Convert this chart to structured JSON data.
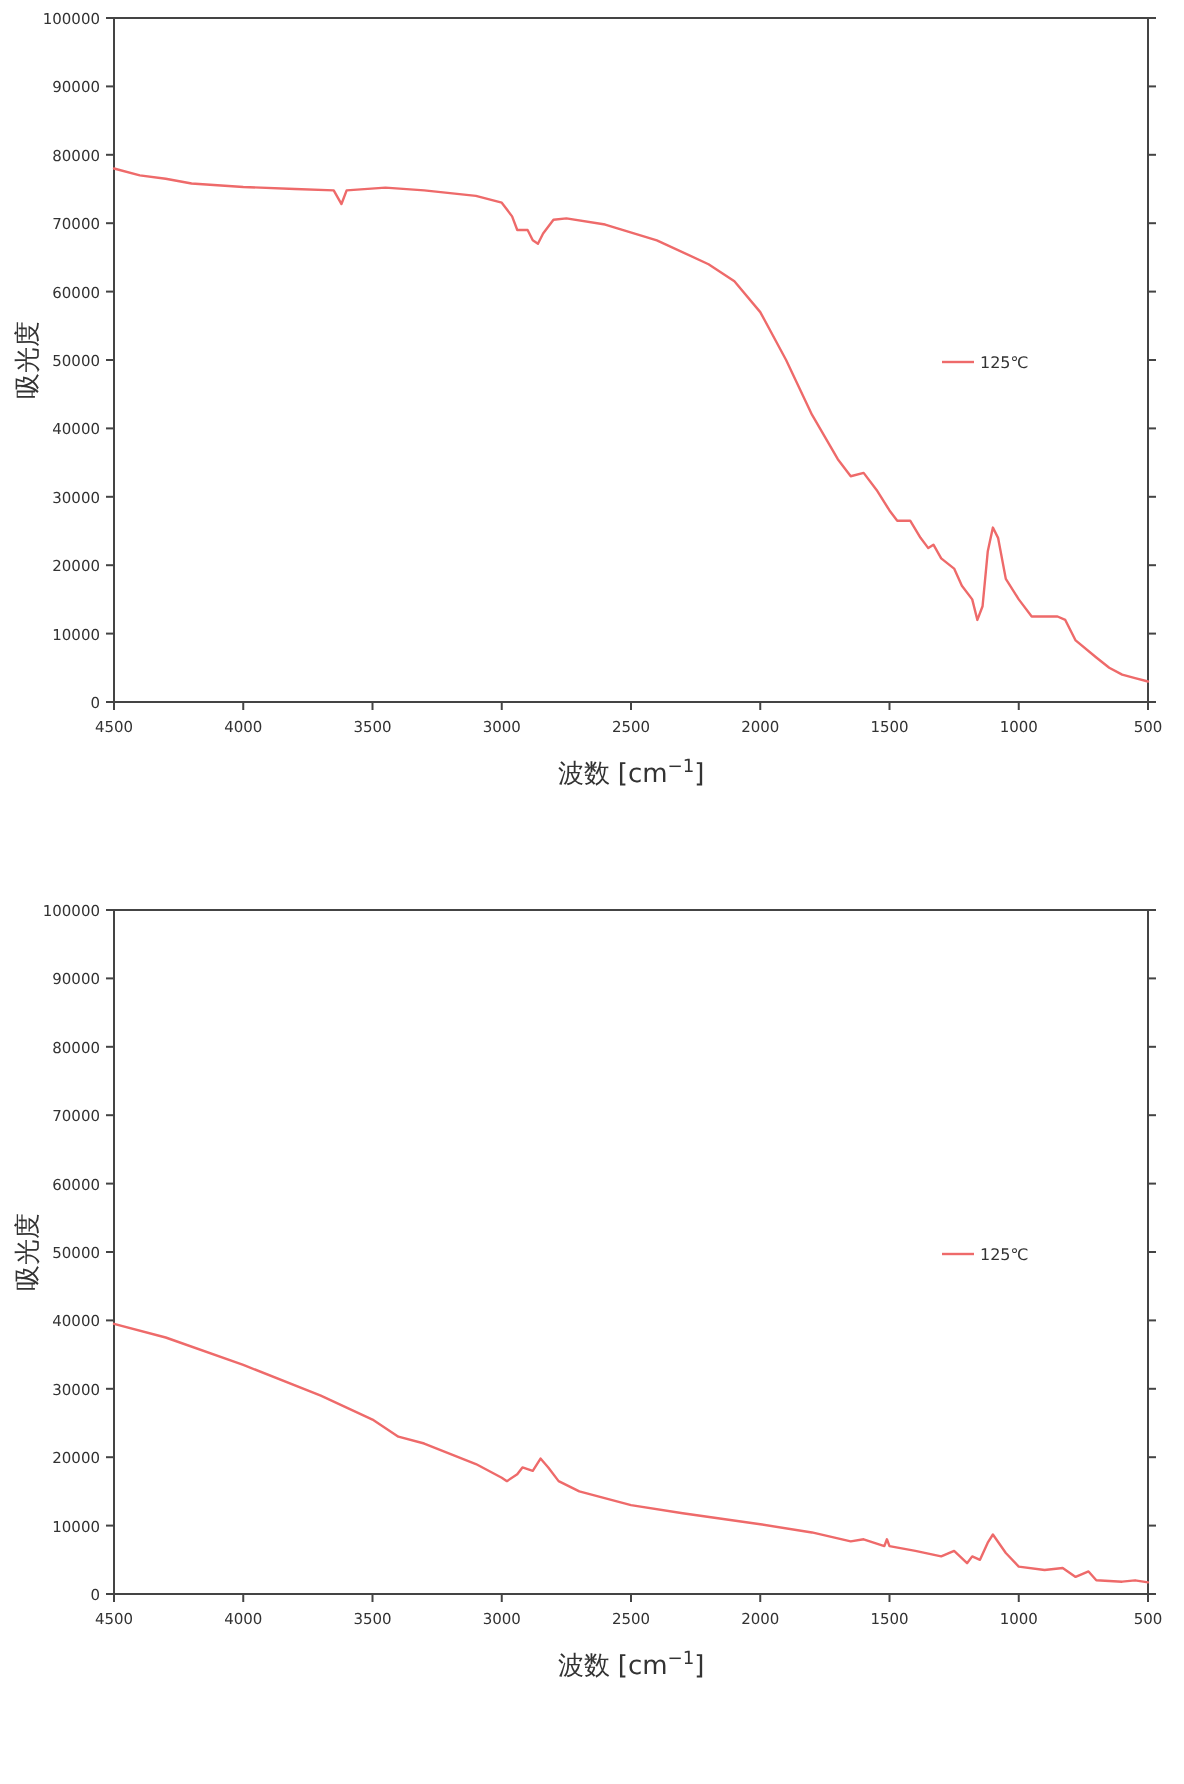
{
  "chart_data": [
    {
      "type": "line",
      "xlabel": "波数 [cm$^{−1}$]",
      "ylabel": "吸光度",
      "xlim": [
        4500,
        500
      ],
      "ylim": [
        0,
        100000
      ],
      "xticks": [
        4500,
        4000,
        3500,
        3000,
        2500,
        2000,
        1500,
        1000,
        500
      ],
      "yticks": [
        0,
        10000,
        20000,
        30000,
        40000,
        50000,
        60000,
        70000,
        80000,
        90000,
        100000
      ],
      "grid": false,
      "legend": "right",
      "marker": "none",
      "line_style": "solid",
      "series": [
        {
          "name": "125℃",
          "color": "#ee6a6a",
          "x": [
            4500,
            4400,
            4300,
            4200,
            4000,
            3800,
            3650,
            3620,
            3600,
            3450,
            3300,
            3100,
            3000,
            2960,
            2940,
            2900,
            2880,
            2860,
            2840,
            2800,
            2750,
            2600,
            2400,
            2200,
            2100,
            2000,
            1900,
            1800,
            1700,
            1650,
            1600,
            1550,
            1500,
            1470,
            1420,
            1380,
            1350,
            1330,
            1300,
            1250,
            1220,
            1180,
            1160,
            1140,
            1120,
            1100,
            1080,
            1050,
            1000,
            950,
            900,
            850,
            820,
            780,
            700,
            650,
            600,
            550,
            500
          ],
          "values": [
            78000,
            77000,
            76500,
            75800,
            75300,
            75000,
            74800,
            72800,
            74800,
            75200,
            74800,
            74000,
            73000,
            71000,
            69000,
            69000,
            67500,
            67000,
            68500,
            70500,
            70700,
            69800,
            67500,
            64000,
            61500,
            57000,
            50000,
            42000,
            35500,
            33000,
            33500,
            31000,
            28000,
            26500,
            26500,
            24000,
            22500,
            23000,
            21000,
            19500,
            17000,
            15000,
            12000,
            14000,
            22000,
            25500,
            24000,
            18000,
            15000,
            12500,
            12500,
            12500,
            12000,
            9000,
            6500,
            5000,
            4000,
            3500,
            3000
          ]
        }
      ]
    },
    {
      "type": "line",
      "xlabel": "波数 [cm$^{−1}$]",
      "ylabel": "吸光度",
      "xlim": [
        4500,
        500
      ],
      "ylim": [
        0,
        100000
      ],
      "xticks": [
        4500,
        4000,
        3500,
        3000,
        2500,
        2000,
        1500,
        1000,
        500
      ],
      "yticks": [
        0,
        10000,
        20000,
        30000,
        40000,
        50000,
        60000,
        70000,
        80000,
        90000,
        100000
      ],
      "grid": false,
      "legend": "right",
      "marker": "none",
      "line_style": "solid",
      "series": [
        {
          "name": "125℃",
          "color": "#ee6a6a",
          "x": [
            4500,
            4300,
            4000,
            3700,
            3500,
            3400,
            3300,
            3100,
            3000,
            2980,
            2940,
            2920,
            2880,
            2850,
            2820,
            2780,
            2700,
            2500,
            2300,
            2000,
            1800,
            1650,
            1600,
            1520,
            1510,
            1500,
            1400,
            1300,
            1250,
            1200,
            1180,
            1150,
            1120,
            1100,
            1050,
            1000,
            900,
            830,
            780,
            730,
            700,
            600,
            550,
            500
          ],
          "values": [
            39500,
            37500,
            33500,
            29000,
            25500,
            23000,
            22000,
            19000,
            17000,
            16500,
            17500,
            18500,
            18000,
            19800,
            18500,
            16500,
            15000,
            13000,
            11800,
            10200,
            9000,
            7700,
            8000,
            7000,
            8000,
            7000,
            6300,
            5500,
            6300,
            4500,
            5500,
            5000,
            7500,
            8700,
            6000,
            4000,
            3500,
            3800,
            2500,
            3300,
            2000,
            1800,
            2000,
            1700
          ]
        }
      ]
    }
  ]
}
